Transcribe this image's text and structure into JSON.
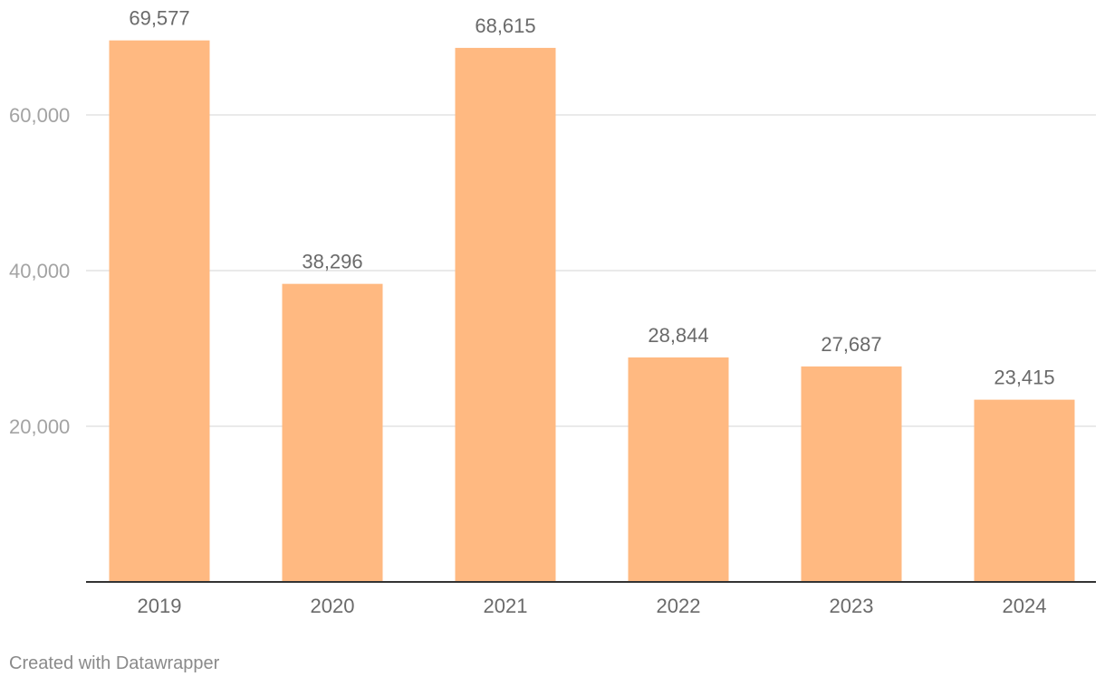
{
  "chart_data": {
    "type": "bar",
    "categories": [
      "2019",
      "2020",
      "2021",
      "2022",
      "2023",
      "2024"
    ],
    "values": [
      69577,
      38296,
      68615,
      28844,
      27687,
      23415
    ],
    "data_labels": [
      "69,577",
      "38,296",
      "68,615",
      "28,844",
      "27,687",
      "23,415"
    ],
    "y_ticks": [
      20000,
      40000,
      60000
    ],
    "y_tick_labels": [
      "20,000",
      "40,000",
      "60,000"
    ],
    "ylim": [
      0,
      70000
    ],
    "grid": true,
    "bar_color": "#ffb981",
    "title": "",
    "xlabel": "",
    "ylabel": ""
  },
  "footer": {
    "credit": "Created with Datawrapper"
  }
}
